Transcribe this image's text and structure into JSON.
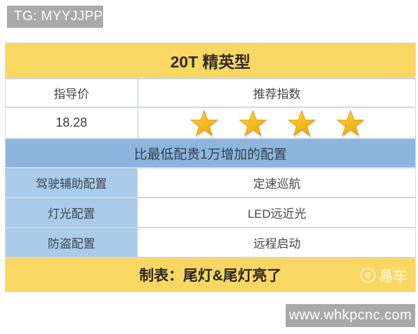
{
  "badges": {
    "top_left": "TG: MYYJJPP",
    "bottom_right": "www.whkpcnc.com"
  },
  "table": {
    "header_title": "20T 精英型",
    "col_left_header": "指导价",
    "col_right_header": "推荐指数",
    "price": "18.28",
    "rating_stars": 4,
    "rating_max": 5,
    "section_banner": "比最低配贵1万增加的配置",
    "config_rows": [
      {
        "label": "驾驶辅助配置",
        "value": "定速巡航"
      },
      {
        "label": "灯光配置",
        "value": "LED远近光"
      },
      {
        "label": "防盗配置",
        "value": "远程启动"
      }
    ],
    "footer": "制表：尾灯&尾灯亮了"
  },
  "watermark": {
    "brand": "易车",
    "icon_glyph": "e"
  },
  "colors": {
    "header_yellow": "#fad763",
    "banner_blue": "#8cb6de",
    "cell_blue": "#aacbe9",
    "star_gold_light": "#ffd84e",
    "star_gold_dark": "#f0a800",
    "star_stroke": "#d89a00",
    "badge_gray": "#a9a9a9",
    "row_divider": "#cfd7e3"
  },
  "chart_data": {
    "type": "table",
    "title": "20T 精英型",
    "columns": [
      "指导价",
      "推荐指数"
    ],
    "rows": [
      {
        "label": "指导价/推荐指数",
        "price": 18.28,
        "recommend_stars": 4,
        "stars_max": 5
      },
      {
        "label": "比最低配贵1万增加的配置",
        "kind": "section-header"
      },
      {
        "label": "驾驶辅助配置",
        "value": "定速巡航"
      },
      {
        "label": "灯光配置",
        "value": "LED远近光"
      },
      {
        "label": "防盗配置",
        "value": "远程启动"
      }
    ],
    "footer": "制表：尾灯&尾灯亮了",
    "legend_position": "none",
    "grid": true
  }
}
